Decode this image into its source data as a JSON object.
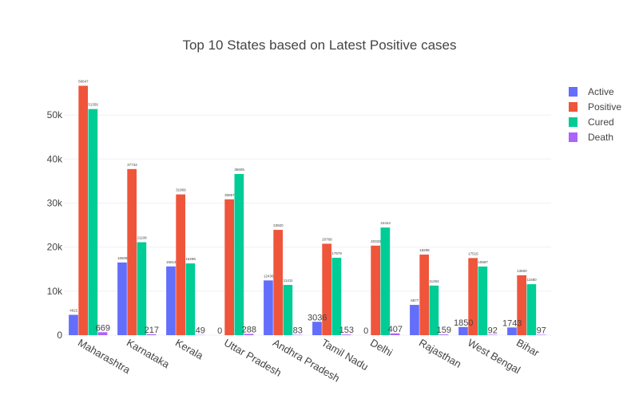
{
  "chart_data": {
    "type": "bar",
    "title": "Top 10 States based on Latest Positive cases",
    "xlabel": "",
    "ylabel": "",
    "ylim": [
      0,
      58000
    ],
    "yticks": [
      0,
      10000,
      20000,
      30000,
      40000,
      50000
    ],
    "ytick_labels": [
      "0",
      "10k",
      "20k",
      "30k",
      "40k",
      "50k"
    ],
    "grid": true,
    "legend_position": "top-right",
    "categories": [
      "Maharashtra",
      "Karnataka",
      "Kerala",
      "Uttar Pradesh",
      "Andhra Pradesh",
      "Tamil Nadu",
      "Delhi",
      "Rajasthan",
      "West Bengal",
      "Bihar"
    ],
    "series": [
      {
        "name": "Active",
        "color": "#636efa",
        "values": [
          4622,
          16508,
          15614,
          0,
          12436,
          3036,
          0,
          6877,
          1850,
          1743
        ],
        "labels": [
          "4622",
          "16508",
          "15614",
          "0",
          "12436",
          "3036",
          "0",
          "6877",
          "1850",
          "1743"
        ]
      },
      {
        "name": "Positive",
        "color": "#ef553b",
        "values": [
          56647,
          37733,
          31969,
          30857,
          23920,
          20768,
          20333,
          18298,
          17515,
          13600
        ],
        "labels": [
          "56647",
          "37733",
          "31969",
          "30857",
          "23920",
          "20768",
          "20333",
          "18298",
          "17515",
          "13600"
        ]
      },
      {
        "name": "Cured",
        "color": "#00cc96",
        "values": [
          51356,
          21108,
          16296,
          36605,
          11411,
          17579,
          24444,
          11262,
          15587,
          11580
        ],
        "labels": [
          "51356",
          "21108",
          "16296",
          "36605",
          "11411",
          "17579",
          "24444",
          "11262",
          "15587",
          "11580"
        ]
      },
      {
        "name": "Death",
        "color": "#ab63fa",
        "values": [
          669,
          217,
          49,
          288,
          83,
          153,
          407,
          159,
          92,
          97
        ],
        "labels": [
          "669",
          "217",
          "49",
          "288",
          "83",
          "153",
          "407",
          "159",
          "92",
          "97"
        ]
      }
    ]
  }
}
